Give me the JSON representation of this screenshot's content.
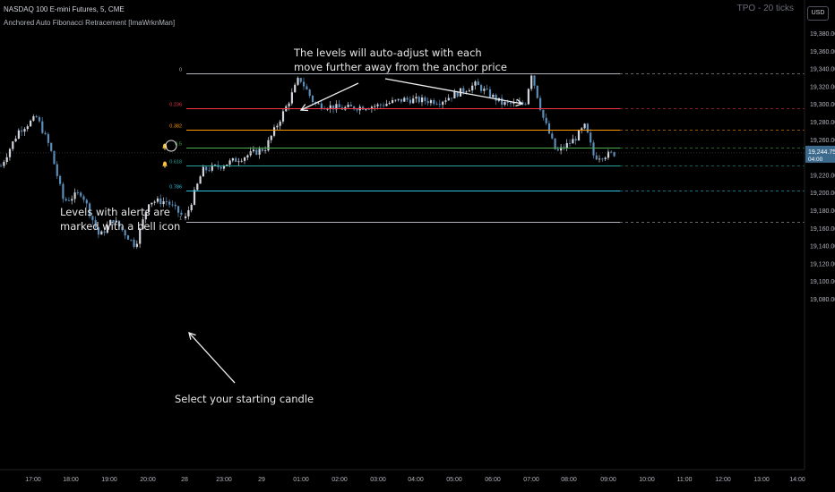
{
  "header": {
    "symbol_line": "NASDAQ 100 E-mini Futures, 5, CME",
    "indicator_line": "Anchored Auto Fibonacci Retracement [ImaWrknMan]",
    "tpo_label": "TPO - 20 ticks",
    "currency_button": "USD"
  },
  "annotations": {
    "top_callout": "The levels will auto-adjust with each\nmove further away from the anchor price",
    "left_callout": "Levels with alerts are\nmarked with a bell icon",
    "bottom_callout": "Select your starting candle"
  },
  "price_scale": {
    "labels": [
      "19,380.00",
      "19,360.00",
      "19,340.00",
      "19,320.00",
      "19,300.00",
      "19,280.00",
      "19,260.00",
      "19,240.00",
      "19,220.00",
      "19,200.00",
      "19,180.00",
      "19,160.00",
      "19,140.00",
      "19,120.00",
      "19,100.00",
      "19,080.00"
    ],
    "current_price": "19,244.75",
    "countdown": "04:00"
  },
  "time_axis": {
    "labels": [
      "17:00",
      "18:00",
      "19:00",
      "20:00",
      "28",
      "23:00",
      "29",
      "01:00",
      "02:00",
      "03:00",
      "04:00",
      "05:00",
      "06:00",
      "07:00",
      "08:00",
      "09:00",
      "10:00",
      "11:00",
      "12:00",
      "13:00",
      "14:00"
    ]
  },
  "fib_levels": [
    {
      "label": "0",
      "price": 19335,
      "color": "#b2b5be",
      "bell": false
    },
    {
      "label": "0.236",
      "price": 19295,
      "color": "#f23645",
      "bell": false
    },
    {
      "label": "0.382",
      "price": 19271,
      "color": "#ff9800",
      "bell": false
    },
    {
      "label": "0.5",
      "price": 19251,
      "color": "#4caf50",
      "bell": true
    },
    {
      "label": "0.618",
      "price": 19231,
      "color": "#26a69a",
      "bell": true
    },
    {
      "label": "0.786",
      "price": 19202,
      "color": "#2ec4e6",
      "bell": false
    },
    {
      "label": "1",
      "price": 19167,
      "color": "#b2b5be",
      "bell": false
    }
  ],
  "colors": {
    "background": "#000000",
    "bull": "#d1d4dc",
    "bear": "#5b8db8",
    "axis_text": "#b2b5be",
    "grid": "#1a1a1a",
    "price_tag": "#3c6a8c"
  },
  "icons": [
    "bell-icon"
  ],
  "chart_data": {
    "type": "candlestick",
    "symbol": "NASDAQ 100 E-mini Futures",
    "timeframe": "5",
    "ylim": [
      19060,
      19400
    ],
    "last_price": 19244.75,
    "key_points": [
      {
        "time": "20:40",
        "price": 19171,
        "note": "anchor candle"
      },
      {
        "time": "01:00",
        "price": 19333
      },
      {
        "time": "07:05",
        "price": 19335
      },
      {
        "time": "09:00",
        "price": 19244.75
      }
    ]
  }
}
